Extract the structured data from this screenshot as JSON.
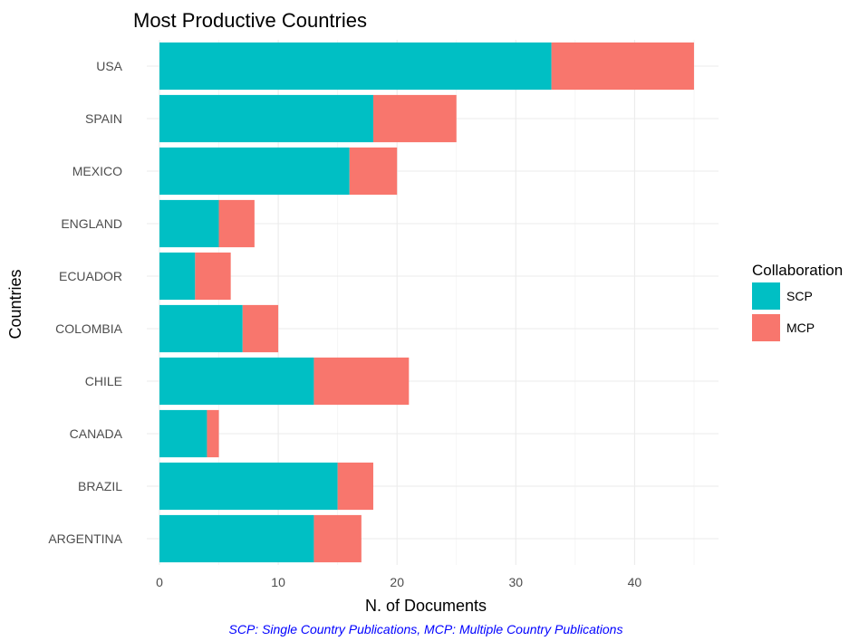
{
  "chart_data": {
    "type": "bar",
    "orientation": "horizontal",
    "stacked": true,
    "title": "Most Productive Countries",
    "xlabel": "N. of Documents",
    "ylabel": "Countries",
    "caption": "SCP: Single Country Publications, MCP: Multiple Country Publications",
    "categories": [
      "USA",
      "SPAIN",
      "MEXICO",
      "ENGLAND",
      "ECUADOR",
      "COLOMBIA",
      "CHILE",
      "CANADA",
      "BRAZIL",
      "ARGENTINA"
    ],
    "series": [
      {
        "name": "SCP",
        "color": "#00bfc4",
        "values": [
          33,
          18,
          16,
          5,
          3,
          7,
          13,
          4,
          15,
          13
        ]
      },
      {
        "name": "MCP",
        "color": "#f8766d",
        "values": [
          12,
          7,
          4,
          3,
          3,
          3,
          8,
          1,
          3,
          4
        ]
      }
    ],
    "xlim": [
      0,
      45
    ],
    "xticks": [
      0,
      10,
      20,
      30,
      40
    ],
    "grid": true,
    "legend": {
      "title": "Collaboration",
      "placement": "right"
    }
  }
}
